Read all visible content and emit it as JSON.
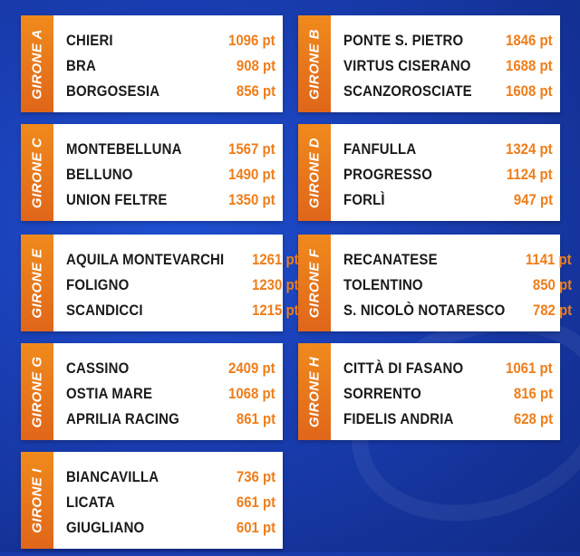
{
  "groups": [
    {
      "label": "GIRONE A",
      "teams": [
        {
          "name": "CHIERI",
          "points": "1096 pt"
        },
        {
          "name": "BRA",
          "points": "908 pt"
        },
        {
          "name": "BORGOSESIA",
          "points": "856 pt"
        }
      ]
    },
    {
      "label": "GIRONE B",
      "teams": [
        {
          "name": "PONTE S. PIETRO",
          "points": "1846 pt"
        },
        {
          "name": "VIRTUS CISERANO",
          "points": "1688 pt"
        },
        {
          "name": "SCANZOROSCIATE",
          "points": "1608 pt"
        }
      ]
    },
    {
      "label": "GIRONE C",
      "teams": [
        {
          "name": "MONTEBELLUNA",
          "points": "1567 pt"
        },
        {
          "name": "BELLUNO",
          "points": "1490 pt"
        },
        {
          "name": "UNION FELTRE",
          "points": "1350 pt"
        }
      ]
    },
    {
      "label": "GIRONE D",
      "teams": [
        {
          "name": "FANFULLA",
          "points": "1324 pt"
        },
        {
          "name": "PROGRESSO",
          "points": "1124 pt"
        },
        {
          "name": "FORLÌ",
          "points": "947 pt"
        }
      ]
    },
    {
      "label": "GIRONE E",
      "teams": [
        {
          "name": "AQUILA MONTEVARCHI",
          "points": "1261 pt"
        },
        {
          "name": "FOLIGNO",
          "points": "1230 pt"
        },
        {
          "name": "SCANDICCI",
          "points": "1215 pt"
        }
      ]
    },
    {
      "label": "GIRONE F",
      "teams": [
        {
          "name": "RECANATESE",
          "points": "1141 pt"
        },
        {
          "name": "TOLENTINO",
          "points": "850 pt"
        },
        {
          "name": "S. NICOLÒ NOTARESCO",
          "points": "782 pt"
        }
      ]
    },
    {
      "label": "GIRONE G",
      "teams": [
        {
          "name": "CASSINO",
          "points": "2409 pt"
        },
        {
          "name": "OSTIA MARE",
          "points": "1068 pt"
        },
        {
          "name": "APRILIA RACING",
          "points": "861 pt"
        }
      ]
    },
    {
      "label": "GIRONE H",
      "teams": [
        {
          "name": "CITTÀ DI FASANO",
          "points": "1061 pt"
        },
        {
          "name": "SORRENTO",
          "points": "816 pt"
        },
        {
          "name": "FIDELIS ANDRIA",
          "points": "628 pt"
        }
      ]
    },
    {
      "label": "GIRONE I",
      "teams": [
        {
          "name": "BIANCAVILLA",
          "points": "736 pt"
        },
        {
          "name": "LICATA",
          "points": "661 pt"
        },
        {
          "name": "GIUGLIANO",
          "points": "601 pt"
        }
      ]
    }
  ],
  "colors": {
    "background": "#1a3fb5",
    "tab": "#ee7a1b",
    "points": "#ef7d1a",
    "card": "#ffffff"
  }
}
